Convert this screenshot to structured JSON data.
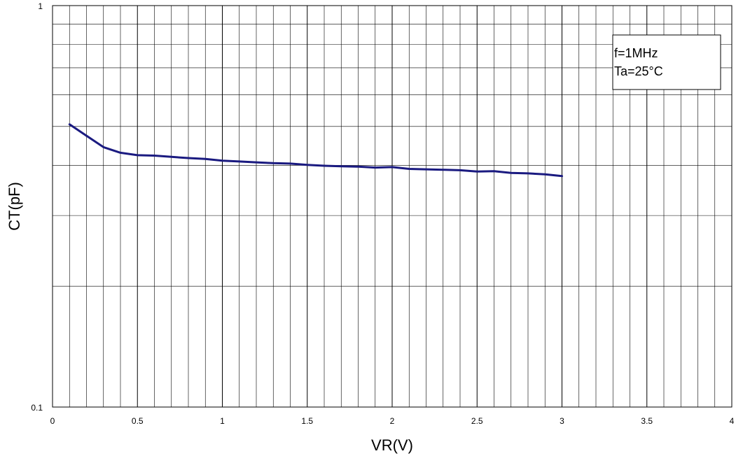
{
  "chart_data": {
    "type": "line",
    "xlabel": "VR(V)",
    "ylabel": "CT(pF)",
    "xlim": [
      0,
      4
    ],
    "ylim": [
      0.1,
      1
    ],
    "yscale": "log",
    "grid": true,
    "x_ticks": [
      "0",
      "0.5",
      "1",
      "1.5",
      "2",
      "2.5",
      "3",
      "3.5",
      "4"
    ],
    "y_ticks": [
      "0.1",
      "1"
    ],
    "annotations": [
      "f=1MHz",
      "Ta=25°C"
    ],
    "legend_position": "top-right",
    "line_color": "#1a1a80",
    "series": [
      {
        "x": [
          0.1,
          0.2,
          0.3,
          0.4,
          0.5,
          0.6,
          0.7,
          0.8,
          0.9,
          1.0,
          1.1,
          1.2,
          1.3,
          1.4,
          1.5,
          1.6,
          1.7,
          1.8,
          1.9,
          2.0,
          2.1,
          2.2,
          2.3,
          2.4,
          2.5,
          2.6,
          2.7,
          2.8,
          2.9,
          3.0
        ],
        "y": [
          0.506,
          0.474,
          0.444,
          0.43,
          0.424,
          0.423,
          0.42,
          0.417,
          0.415,
          0.411,
          0.409,
          0.407,
          0.405,
          0.404,
          0.401,
          0.399,
          0.398,
          0.397,
          0.395,
          0.396,
          0.392,
          0.391,
          0.39,
          0.389,
          0.386,
          0.387,
          0.383,
          0.382,
          0.38,
          0.376
        ]
      }
    ]
  }
}
